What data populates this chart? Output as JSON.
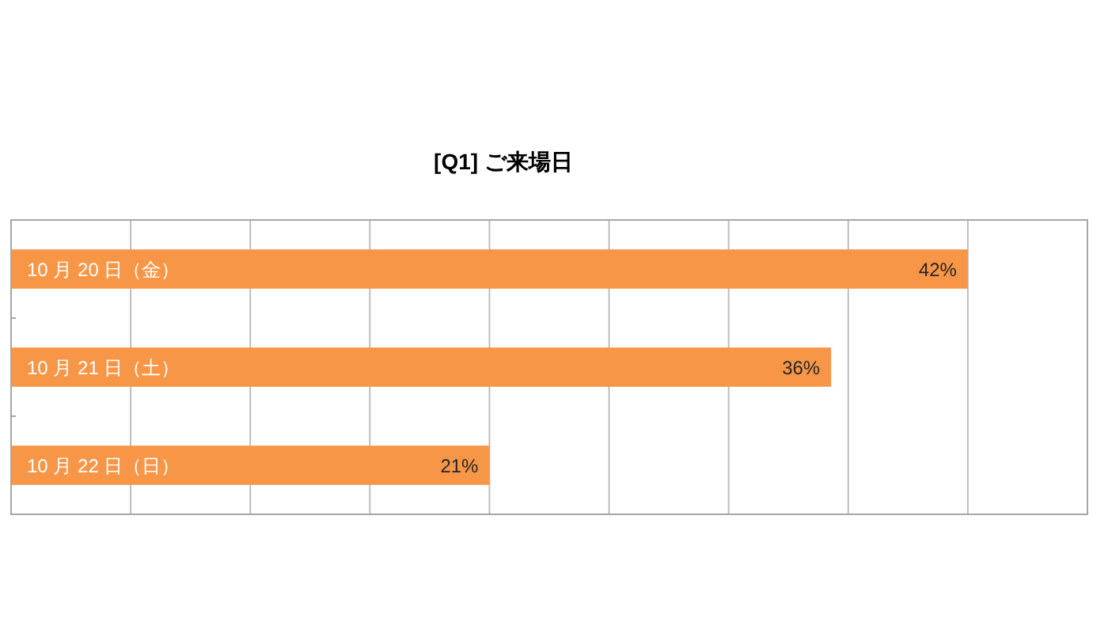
{
  "chart_data": {
    "type": "bar",
    "orientation": "horizontal",
    "title": "[Q1] ご来場日",
    "categories": [
      "10 月 20 日（金）",
      "10 月 21 日（土）",
      "10 月 22 日（日）"
    ],
    "values": [
      42,
      36,
      21
    ],
    "value_labels": [
      "42%",
      "36%",
      "21%"
    ],
    "color": "#f79646",
    "xlim": [
      0,
      47.25
    ],
    "xticks": [
      {
        "value": 0,
        "label": null
      },
      {
        "value": 5.25,
        "label": null
      },
      {
        "value": 10.5,
        "label": null
      },
      {
        "value": 15.75,
        "label": null
      },
      {
        "value": 21,
        "label": null
      },
      {
        "value": 26.25,
        "label": null
      },
      {
        "value": 31.5,
        "label": null
      },
      {
        "value": 36.75,
        "label": null
      },
      {
        "value": 42,
        "label": null
      },
      {
        "value": 47.25,
        "label": null
      }
    ],
    "grid": "x",
    "tick_labels": "y"
  }
}
